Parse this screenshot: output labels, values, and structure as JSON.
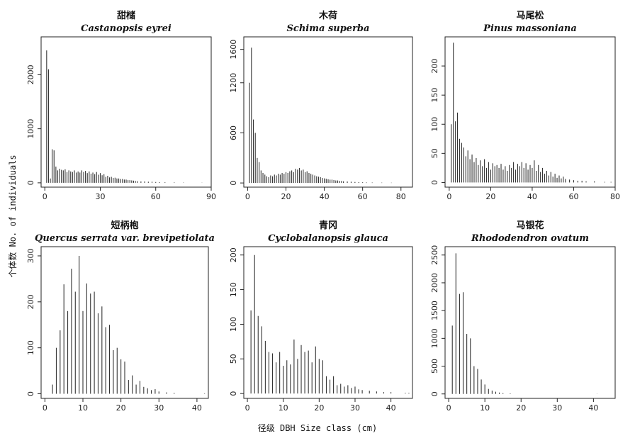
{
  "figure": {
    "ylabel": "个体数 No. of individuals",
    "xlabel": "径级 DBH Size class (cm)"
  },
  "chart_data": [
    {
      "type": "bar",
      "title_cn": "甜槠",
      "title_sci": "Castanopsis eyrei",
      "xlim": [
        -2,
        90
      ],
      "ylim": [
        -80,
        2700
      ],
      "xticks": [
        0,
        30,
        60,
        90
      ],
      "yticks": [
        0,
        1000,
        2000
      ],
      "x": [
        1,
        2,
        3,
        4,
        5,
        6,
        7,
        8,
        9,
        10,
        11,
        12,
        13,
        14,
        15,
        16,
        17,
        18,
        19,
        20,
        21,
        22,
        23,
        24,
        25,
        26,
        27,
        28,
        29,
        30,
        31,
        32,
        33,
        34,
        35,
        36,
        37,
        38,
        39,
        40,
        41,
        42,
        43,
        44,
        45,
        46,
        47,
        48,
        49,
        50,
        52,
        54,
        56,
        58,
        60,
        62,
        65,
        70,
        75,
        85
      ],
      "values": [
        2450,
        2100,
        80,
        620,
        600,
        300,
        230,
        260,
        240,
        230,
        250,
        200,
        230,
        210,
        200,
        230,
        190,
        210,
        190,
        230,
        200,
        220,
        180,
        210,
        170,
        190,
        160,
        200,
        150,
        180,
        140,
        160,
        110,
        130,
        100,
        110,
        90,
        95,
        80,
        80,
        70,
        70,
        60,
        60,
        50,
        50,
        45,
        40,
        35,
        30,
        25,
        25,
        20,
        20,
        15,
        12,
        10,
        8,
        5,
        3
      ]
    },
    {
      "type": "bar",
      "title_cn": "木荷",
      "title_sci": "Schima superba",
      "xlim": [
        -2,
        86
      ],
      "ylim": [
        -50,
        1750
      ],
      "xticks": [
        0,
        20,
        40,
        60,
        80
      ],
      "yticks": [
        0,
        600,
        1200,
        1600
      ],
      "x": [
        1,
        2,
        3,
        4,
        5,
        6,
        7,
        8,
        9,
        10,
        11,
        12,
        13,
        14,
        15,
        16,
        17,
        18,
        19,
        20,
        21,
        22,
        23,
        24,
        25,
        26,
        27,
        28,
        29,
        30,
        31,
        32,
        33,
        34,
        35,
        36,
        37,
        38,
        39,
        40,
        41,
        42,
        43,
        44,
        45,
        46,
        47,
        48,
        49,
        50,
        52,
        54,
        56,
        58,
        60,
        62,
        65,
        70,
        75
      ],
      "values": [
        1200,
        1620,
        760,
        600,
        300,
        250,
        150,
        120,
        100,
        80,
        70,
        90,
        80,
        100,
        90,
        110,
        100,
        120,
        110,
        130,
        120,
        140,
        150,
        130,
        170,
        160,
        180,
        150,
        160,
        130,
        140,
        120,
        110,
        100,
        90,
        80,
        75,
        70,
        60,
        55,
        50,
        45,
        40,
        40,
        35,
        30,
        30,
        25,
        25,
        20,
        18,
        15,
        12,
        10,
        8,
        6,
        5,
        4,
        3
      ]
    },
    {
      "type": "bar",
      "title_cn": "马尾松",
      "title_sci": "Pinus massoniana",
      "xlim": [
        -2,
        80
      ],
      "ylim": [
        -8,
        250
      ],
      "xticks": [
        0,
        20,
        40,
        60,
        80
      ],
      "yticks": [
        0,
        50,
        100,
        150,
        200
      ],
      "x": [
        1,
        2,
        3,
        4,
        5,
        6,
        7,
        8,
        9,
        10,
        11,
        12,
        13,
        14,
        15,
        16,
        17,
        18,
        19,
        20,
        21,
        22,
        23,
        24,
        25,
        26,
        27,
        28,
        29,
        30,
        31,
        32,
        33,
        34,
        35,
        36,
        37,
        38,
        39,
        40,
        41,
        42,
        43,
        44,
        45,
        46,
        47,
        48,
        49,
        50,
        51,
        52,
        53,
        54,
        55,
        56,
        58,
        60,
        62,
        64,
        66,
        70,
        75,
        78
      ],
      "values": [
        100,
        240,
        105,
        120,
        75,
        68,
        60,
        45,
        55,
        40,
        48,
        35,
        42,
        30,
        38,
        28,
        40,
        25,
        35,
        22,
        33,
        28,
        30,
        25,
        32,
        22,
        28,
        20,
        30,
        25,
        35,
        22,
        32,
        28,
        35,
        25,
        33,
        22,
        30,
        25,
        38,
        20,
        30,
        18,
        25,
        15,
        20,
        12,
        18,
        10,
        15,
        8,
        12,
        7,
        10,
        6,
        5,
        4,
        3,
        3,
        2,
        2,
        1,
        1
      ]
    },
    {
      "type": "bar",
      "title_cn": "短柄枹",
      "title_sci": "Quercus serrata var. brevipetiolata",
      "xlim": [
        -1,
        43
      ],
      "ylim": [
        -10,
        320
      ],
      "xticks": [
        0,
        10,
        20,
        30,
        40
      ],
      "yticks": [
        0,
        100,
        200,
        300
      ],
      "x": [
        2,
        3,
        4,
        5,
        6,
        7,
        8,
        9,
        10,
        11,
        12,
        13,
        14,
        15,
        16,
        17,
        18,
        19,
        20,
        21,
        22,
        23,
        24,
        25,
        26,
        27,
        28,
        29,
        30,
        32,
        34,
        42
      ],
      "values": [
        20,
        100,
        138,
        238,
        180,
        272,
        222,
        300,
        180,
        240,
        218,
        222,
        175,
        190,
        145,
        150,
        95,
        100,
        75,
        70,
        30,
        40,
        20,
        28,
        15,
        12,
        8,
        10,
        5,
        3,
        2,
        1
      ]
    },
    {
      "type": "bar",
      "title_cn": "青冈",
      "title_sci": "Cyclobalanopsis glauca",
      "xlim": [
        -1,
        46
      ],
      "ylim": [
        -7,
        212
      ],
      "xticks": [
        0,
        10,
        20,
        30,
        40
      ],
      "yticks": [
        0,
        50,
        100,
        150,
        200
      ],
      "x": [
        1,
        2,
        3,
        4,
        5,
        6,
        7,
        8,
        9,
        10,
        11,
        12,
        13,
        14,
        15,
        16,
        17,
        18,
        19,
        20,
        21,
        22,
        23,
        24,
        25,
        26,
        27,
        28,
        29,
        30,
        31,
        32,
        34,
        36,
        38,
        40,
        44,
        45
      ],
      "values": [
        120,
        200,
        112,
        97,
        76,
        60,
        58,
        45,
        60,
        40,
        48,
        42,
        78,
        50,
        70,
        60,
        62,
        45,
        68,
        50,
        48,
        25,
        20,
        25,
        12,
        14,
        10,
        12,
        8,
        10,
        6,
        5,
        4,
        3,
        2,
        2,
        1,
        1
      ]
    },
    {
      "type": "bar",
      "title_cn": "马银花",
      "title_sci": "Rhododendron ovatum",
      "xlim": [
        -1,
        46
      ],
      "ylim": [
        -80,
        2650
      ],
      "xticks": [
        0,
        10,
        20,
        30,
        40
      ],
      "yticks": [
        0,
        500,
        1000,
        1500,
        2000,
        2500
      ],
      "x": [
        1,
        2,
        3,
        4,
        5,
        6,
        7,
        8,
        9,
        10,
        11,
        12,
        13,
        14,
        15,
        17,
        41
      ],
      "values": [
        1230,
        2530,
        1800,
        1830,
        1080,
        1000,
        500,
        450,
        260,
        170,
        90,
        60,
        40,
        25,
        15,
        10,
        3
      ]
    }
  ]
}
